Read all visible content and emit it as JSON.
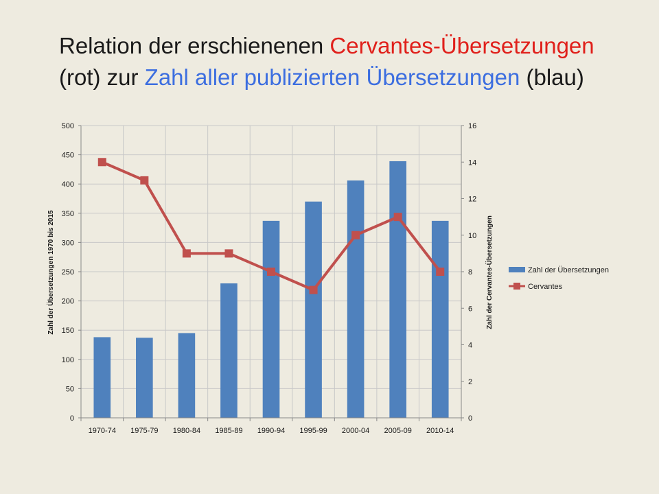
{
  "title": {
    "part1": "Relation der erschienenen ",
    "red_part": "Cervantes-Übersetzungen",
    "part2": "(rot) zur ",
    "blue_part": "Zahl aller publizierten Übersetzungen",
    "part3": " (blau)"
  },
  "colors": {
    "background": "#eeebe0",
    "title_red": "#e0201b",
    "title_blue": "#3c6ee0",
    "bar": "#4f81bd",
    "line": "#c0504d",
    "grid": "#c8c8c8"
  },
  "chart_data": {
    "type": "bar+line",
    "categories": [
      "1970-74",
      "1975-79",
      "1980-84",
      "1985-89",
      "1990-94",
      "1995-99",
      "2000-04",
      "2005-09",
      "2010-14"
    ],
    "series": [
      {
        "name": "Zahl der Übersetzungen",
        "type": "bar",
        "axis": "left",
        "values": [
          138,
          137,
          145,
          230,
          337,
          370,
          406,
          439,
          337
        ]
      },
      {
        "name": "Cervantes",
        "type": "line",
        "axis": "right",
        "values": [
          14,
          13,
          9,
          9,
          8,
          7,
          10,
          11,
          8
        ]
      }
    ],
    "ylabel": "Zahl der Übersetzungen 1970 bis 2015",
    "y2label": "Zahl der Cervantes-Übersetzungen",
    "ylim": [
      0,
      500
    ],
    "y2lim": [
      0,
      16
    ],
    "yticks": [
      "0",
      "50",
      "100",
      "150",
      "200",
      "250",
      "300",
      "350",
      "400",
      "450",
      "500"
    ],
    "y2ticks": [
      "0",
      "2",
      "4",
      "6",
      "8",
      "10",
      "12",
      "14",
      "16"
    ],
    "grid": true,
    "legend": "right"
  }
}
